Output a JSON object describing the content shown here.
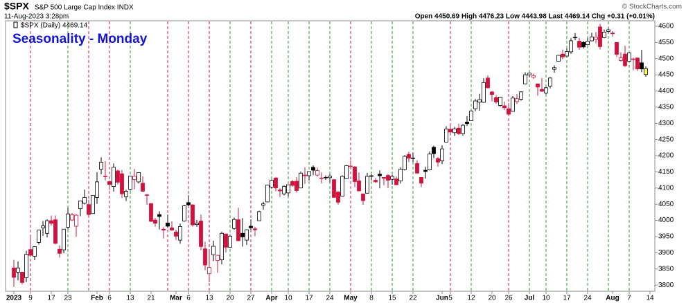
{
  "chart_data": {
    "type": "candlestick",
    "symbol": "$SPX",
    "description": "S&P 500 Large Cap Index INDX",
    "timestamp": "11-Aug-2023 3:28pm",
    "quote": "Open 4450.69 High 4476.23 Low 4443.98 Last 4469.14 Chg +0.31 (+0.01%)",
    "copyright": "© StockCharts.com",
    "legend": "$SPX (Daily) 4469.14",
    "title": "Seasonality - Monday",
    "up_color": "#000000",
    "down_color": "#d6103c",
    "last_color": "#ffff66",
    "monday_up_color": "#2a9a2a",
    "monday_down_color": "#d6103c",
    "x": [
      "2023-01-03",
      "2023-01-04",
      "2023-01-05",
      "2023-01-06",
      "2023-01-09",
      "2023-01-10",
      "2023-01-11",
      "2023-01-12",
      "2023-01-13",
      "2023-01-17",
      "2023-01-18",
      "2023-01-19",
      "2023-01-20",
      "2023-01-23",
      "2023-01-24",
      "2023-01-25",
      "2023-01-26",
      "2023-01-27",
      "2023-01-30",
      "2023-01-31",
      "2023-02-01",
      "2023-02-02",
      "2023-02-03",
      "2023-02-06",
      "2023-02-07",
      "2023-02-08",
      "2023-02-09",
      "2023-02-10",
      "2023-02-13",
      "2023-02-14",
      "2023-02-15",
      "2023-02-16",
      "2023-02-17",
      "2023-02-21",
      "2023-02-22",
      "2023-02-23",
      "2023-02-24",
      "2023-02-27",
      "2023-02-28",
      "2023-03-01",
      "2023-03-02",
      "2023-03-03",
      "2023-03-06",
      "2023-03-07",
      "2023-03-08",
      "2023-03-09",
      "2023-03-10",
      "2023-03-13",
      "2023-03-14",
      "2023-03-15",
      "2023-03-16",
      "2023-03-17",
      "2023-03-20",
      "2023-03-21",
      "2023-03-22",
      "2023-03-23",
      "2023-03-24",
      "2023-03-27",
      "2023-03-28",
      "2023-03-29",
      "2023-03-30",
      "2023-03-31",
      "2023-04-03",
      "2023-04-04",
      "2023-04-05",
      "2023-04-06",
      "2023-04-10",
      "2023-04-11",
      "2023-04-12",
      "2023-04-13",
      "2023-04-14",
      "2023-04-17",
      "2023-04-18",
      "2023-04-19",
      "2023-04-20",
      "2023-04-21",
      "2023-04-24",
      "2023-04-25",
      "2023-04-26",
      "2023-04-27",
      "2023-04-28",
      "2023-05-01",
      "2023-05-02",
      "2023-05-03",
      "2023-05-04",
      "2023-05-05",
      "2023-05-08",
      "2023-05-09",
      "2023-05-10",
      "2023-05-11",
      "2023-05-12",
      "2023-05-15",
      "2023-05-16",
      "2023-05-17",
      "2023-05-18",
      "2023-05-19",
      "2023-05-22",
      "2023-05-23",
      "2023-05-24",
      "2023-05-25",
      "2023-05-26",
      "2023-05-30",
      "2023-05-31",
      "2023-06-01",
      "2023-06-02",
      "2023-06-05",
      "2023-06-06",
      "2023-06-07",
      "2023-06-08",
      "2023-06-09",
      "2023-06-12",
      "2023-06-13",
      "2023-06-14",
      "2023-06-15",
      "2023-06-16",
      "2023-06-20",
      "2023-06-21",
      "2023-06-22",
      "2023-06-23",
      "2023-06-26",
      "2023-06-27",
      "2023-06-28",
      "2023-06-29",
      "2023-06-30",
      "2023-07-03",
      "2023-07-05",
      "2023-07-06",
      "2023-07-07",
      "2023-07-10",
      "2023-07-11",
      "2023-07-12",
      "2023-07-13",
      "2023-07-14",
      "2023-07-17",
      "2023-07-18",
      "2023-07-19",
      "2023-07-20",
      "2023-07-21",
      "2023-07-24",
      "2023-07-25",
      "2023-07-26",
      "2023-07-27",
      "2023-07-28",
      "2023-07-31",
      "2023-08-01",
      "2023-08-02",
      "2023-08-03",
      "2023-08-04",
      "2023-08-07",
      "2023-08-08",
      "2023-08-09",
      "2023-08-10",
      "2023-08-11"
    ],
    "ohlc": [
      [
        3853,
        3878,
        3794,
        3824
      ],
      [
        3840,
        3873,
        3815,
        3853
      ],
      [
        3840,
        3840,
        3802,
        3808
      ],
      [
        3823,
        3906,
        3809,
        3895
      ],
      [
        3910,
        3951,
        3887,
        3892
      ],
      [
        3889,
        3919,
        3877,
        3919
      ],
      [
        3932,
        3970,
        3925,
        3970
      ],
      [
        3977,
        3998,
        3952,
        3983
      ],
      [
        3960,
        4003,
        3947,
        3999
      ],
      [
        3999,
        4015,
        3984,
        3991
      ],
      [
        4002,
        4015,
        3926,
        3929
      ],
      [
        3911,
        3923,
        3885,
        3898
      ],
      [
        3909,
        3973,
        3898,
        3973
      ],
      [
        3979,
        4039,
        3972,
        4020
      ],
      [
        4001,
        4023,
        3998,
        4017
      ],
      [
        3982,
        4020,
        3949,
        4016
      ],
      [
        4036,
        4061,
        4013,
        4060
      ],
      [
        4053,
        4095,
        4049,
        4071
      ],
      [
        4049,
        4064,
        4015,
        4018
      ],
      [
        4021,
        4077,
        4021,
        4077
      ],
      [
        4071,
        4149,
        4051,
        4119
      ],
      [
        4158,
        4195,
        4142,
        4180
      ],
      [
        4137,
        4183,
        4124,
        4136
      ],
      [
        4120,
        4124,
        4094,
        4111
      ],
      [
        4105,
        4176,
        4089,
        4164
      ],
      [
        4153,
        4157,
        4111,
        4118
      ],
      [
        4144,
        4156,
        4069,
        4082
      ],
      [
        4073,
        4095,
        4060,
        4090
      ],
      [
        4096,
        4138,
        4092,
        4137
      ],
      [
        4126,
        4159,
        4096,
        4136
      ],
      [
        4119,
        4148,
        4114,
        4148
      ],
      [
        4115,
        4136,
        4089,
        4090
      ],
      [
        4078,
        4082,
        4048,
        4079
      ],
      [
        4052,
        4052,
        3995,
        3997
      ],
      [
        4001,
        4008,
        3981,
        3991
      ],
      [
        4018,
        4028,
        3972,
        4012
      ],
      [
        3973,
        3979,
        3944,
        3970
      ],
      [
        3992,
        4018,
        3977,
        3982
      ],
      [
        3977,
        3997,
        3968,
        3970
      ],
      [
        3964,
        3971,
        3939,
        3951
      ],
      [
        3939,
        3990,
        3928,
        3981
      ],
      [
        3998,
        4048,
        3996,
        4045
      ],
      [
        4055,
        4078,
        4044,
        4048
      ],
      [
        4048,
        4050,
        3981,
        3986
      ],
      [
        3987,
        4001,
        3980,
        3992
      ],
      [
        3998,
        4018,
        3908,
        3919
      ],
      [
        3912,
        3934,
        3846,
        3862
      ],
      [
        3835,
        3905,
        3809,
        3855
      ],
      [
        3894,
        3937,
        3874,
        3920
      ],
      [
        3876,
        3894,
        3838,
        3892
      ],
      [
        3878,
        3965,
        3864,
        3960
      ],
      [
        3958,
        3959,
        3901,
        3917
      ],
      [
        3917,
        3956,
        3917,
        3951
      ],
      [
        3975,
        4009,
        3971,
        4003
      ],
      [
        4002,
        4039,
        3936,
        3937
      ],
      [
        3960,
        4007,
        3919,
        3949
      ],
      [
        3939,
        3972,
        3924,
        3971
      ],
      [
        3982,
        4003,
        3970,
        3977
      ],
      [
        3974,
        3980,
        3951,
        3971
      ],
      [
        3999,
        4030,
        3999,
        4027
      ],
      [
        4047,
        4058,
        4033,
        4051
      ],
      [
        4057,
        4110,
        4056,
        4109
      ],
      [
        4103,
        4127,
        4098,
        4124
      ],
      [
        4131,
        4134,
        4090,
        4100
      ],
      [
        4094,
        4099,
        4072,
        4091
      ],
      [
        4082,
        4108,
        4077,
        4105
      ],
      [
        4085,
        4110,
        4073,
        4110
      ],
      [
        4120,
        4125,
        4104,
        4108
      ],
      [
        4121,
        4134,
        4086,
        4092
      ],
      [
        4100,
        4151,
        4100,
        4146
      ],
      [
        4140,
        4164,
        4113,
        4138
      ],
      [
        4138,
        4152,
        4123,
        4151
      ],
      [
        4164,
        4170,
        4140,
        4155
      ],
      [
        4140,
        4163,
        4135,
        4154
      ],
      [
        4131,
        4148,
        4114,
        4130
      ],
      [
        4132,
        4139,
        4125,
        4133
      ],
      [
        4132,
        4142,
        4117,
        4137
      ],
      [
        4126,
        4126,
        4071,
        4071
      ],
      [
        4088,
        4089,
        4049,
        4056
      ],
      [
        4075,
        4139,
        4075,
        4136
      ],
      [
        4129,
        4170,
        4128,
        4169
      ],
      [
        4166,
        4186,
        4164,
        4168
      ],
      [
        4165,
        4168,
        4103,
        4120
      ],
      [
        4122,
        4148,
        4090,
        4091
      ],
      [
        4082,
        4082,
        4048,
        4061
      ],
      [
        4084,
        4147,
        4084,
        4136
      ],
      [
        4136,
        4142,
        4124,
        4138
      ],
      [
        4124,
        4131,
        4116,
        4119
      ],
      [
        4143,
        4155,
        4099,
        4138
      ],
      [
        4133,
        4133,
        4109,
        4130
      ],
      [
        4139,
        4143,
        4099,
        4124
      ],
      [
        4127,
        4141,
        4110,
        4136
      ],
      [
        4128,
        4136,
        4110,
        4110
      ],
      [
        4122,
        4164,
        4114,
        4158
      ],
      [
        4157,
        4202,
        4154,
        4198
      ],
      [
        4204,
        4212,
        4180,
        4192
      ],
      [
        4191,
        4209,
        4180,
        4193
      ],
      [
        4176,
        4186,
        4145,
        4146
      ],
      [
        4133,
        4133,
        4103,
        4115
      ],
      [
        4155,
        4166,
        4129,
        4151
      ],
      [
        4156,
        4213,
        4155,
        4205
      ],
      [
        4226,
        4231,
        4192,
        4206
      ],
      [
        4191,
        4196,
        4166,
        4180
      ],
      [
        4184,
        4232,
        4174,
        4221
      ],
      [
        4242,
        4291,
        4242,
        4282
      ],
      [
        4282,
        4299,
        4266,
        4273
      ],
      [
        4271,
        4289,
        4261,
        4283
      ],
      [
        4285,
        4299,
        4264,
        4268
      ],
      [
        4268,
        4298,
        4262,
        4294
      ],
      [
        4304,
        4322,
        4292,
        4299
      ],
      [
        4308,
        4340,
        4307,
        4338
      ],
      [
        4345,
        4375,
        4337,
        4369
      ],
      [
        4366,
        4391,
        4339,
        4373
      ],
      [
        4365,
        4439,
        4363,
        4426
      ],
      [
        4440,
        4448,
        4407,
        4410
      ],
      [
        4397,
        4400,
        4368,
        4389
      ],
      [
        4380,
        4387,
        4360,
        4366
      ],
      [
        4355,
        4382,
        4352,
        4381
      ],
      [
        4354,
        4367,
        4341,
        4348
      ],
      [
        4345,
        4363,
        4328,
        4328
      ],
      [
        4337,
        4384,
        4336,
        4378
      ],
      [
        4367,
        4390,
        4360,
        4376
      ],
      [
        4374,
        4399,
        4370,
        4397
      ],
      [
        4422,
        4458,
        4422,
        4450
      ],
      [
        4450,
        4456,
        4442,
        4455
      ],
      [
        4442,
        4454,
        4437,
        4447
      ],
      [
        4422,
        4422,
        4385,
        4412
      ],
      [
        4405,
        4440,
        4397,
        4399
      ],
      [
        4394,
        4412,
        4389,
        4410
      ],
      [
        4415,
        4443,
        4408,
        4440
      ],
      [
        4467,
        4479,
        4456,
        4472
      ],
      [
        4492,
        4511,
        4491,
        4510
      ],
      [
        4514,
        4528,
        4498,
        4505
      ],
      [
        4508,
        4532,
        4505,
        4522
      ],
      [
        4521,
        4563,
        4515,
        4555
      ],
      [
        4566,
        4579,
        4557,
        4566
      ],
      [
        4554,
        4564,
        4527,
        4535
      ],
      [
        4550,
        4555,
        4531,
        4536
      ],
      [
        4543,
        4564,
        4541,
        4554
      ],
      [
        4555,
        4580,
        4553,
        4567
      ],
      [
        4559,
        4582,
        4548,
        4566
      ],
      [
        4598,
        4607,
        4528,
        4537
      ],
      [
        4565,
        4590,
        4563,
        4582
      ],
      [
        4584,
        4595,
        4578,
        4589
      ],
      [
        4579,
        4585,
        4568,
        4577
      ],
      [
        4550,
        4550,
        4505,
        4513
      ],
      [
        4494,
        4520,
        4490,
        4502
      ],
      [
        4514,
        4540,
        4474,
        4478
      ],
      [
        4492,
        4520,
        4491,
        4518
      ],
      [
        4499,
        4503,
        4464,
        4499
      ],
      [
        4502,
        4503,
        4462,
        4468
      ],
      [
        4487,
        4527,
        4458,
        4468
      ],
      [
        4450.69,
        4476.23,
        4443.98,
        4469.14
      ]
    ],
    "ylim": [
      3781,
      4617
    ],
    "yticks": [
      3800,
      3850,
      3900,
      3950,
      4000,
      4050,
      4100,
      4150,
      4200,
      4250,
      4300,
      4350,
      4400,
      4450,
      4500,
      4550,
      4600
    ],
    "xticks": [
      {
        "value": "2023-01-03",
        "label": "2023"
      },
      {
        "value": "2023-01-09",
        "label": "9"
      },
      {
        "value": "2023-01-17",
        "label": "17"
      },
      {
        "value": "2023-01-23",
        "label": "23"
      },
      {
        "value": "2023-02-01",
        "label": "Feb"
      },
      {
        "value": "2023-02-06",
        "label": "6"
      },
      {
        "value": "2023-02-13",
        "label": "13"
      },
      {
        "value": "2023-02-21",
        "label": "21"
      },
      {
        "value": "2023-03-01",
        "label": "Mar"
      },
      {
        "value": "2023-03-06",
        "label": "6"
      },
      {
        "value": "2023-03-13",
        "label": "13"
      },
      {
        "value": "2023-03-20",
        "label": "20"
      },
      {
        "value": "2023-03-27",
        "label": "27"
      },
      {
        "value": "2023-04-03",
        "label": "Apr"
      },
      {
        "value": "2023-04-10",
        "label": "10"
      },
      {
        "value": "2023-04-17",
        "label": "17"
      },
      {
        "value": "2023-04-24",
        "label": "24"
      },
      {
        "value": "2023-05-01",
        "label": "May"
      },
      {
        "value": "2023-05-08",
        "label": "8"
      },
      {
        "value": "2023-05-15",
        "label": "15"
      },
      {
        "value": "2023-05-22",
        "label": "22"
      },
      {
        "value": "2023-06-01",
        "label": "Jun"
      },
      {
        "value": "2023-06-05",
        "label": "5"
      },
      {
        "value": "2023-06-12",
        "label": "12"
      },
      {
        "value": "2023-06-20",
        "label": "20"
      },
      {
        "value": "2023-06-26",
        "label": "26"
      },
      {
        "value": "2023-07-03",
        "label": "Jul"
      },
      {
        "value": "2023-07-10",
        "label": "10"
      },
      {
        "value": "2023-07-17",
        "label": "17"
      },
      {
        "value": "2023-07-24",
        "label": "24"
      },
      {
        "value": "2023-08-01",
        "label": "Aug"
      },
      {
        "value": "2023-08-07",
        "label": "7"
      },
      {
        "value": "2023-08-14",
        "label": "14"
      }
    ]
  }
}
